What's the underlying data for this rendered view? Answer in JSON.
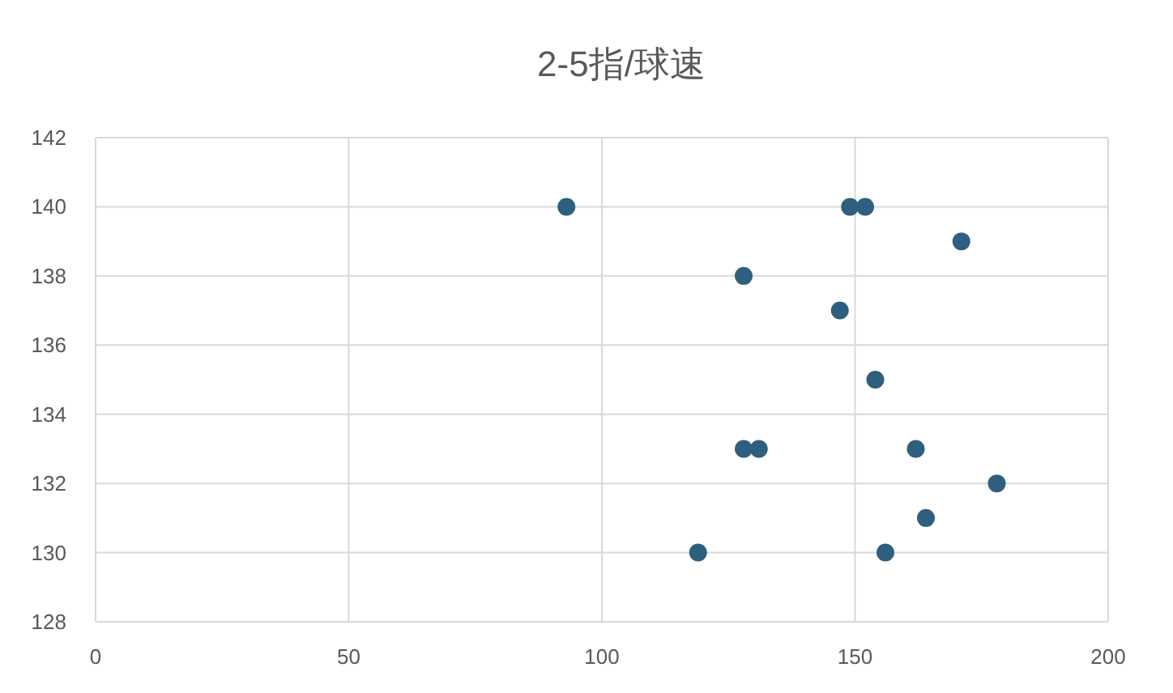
{
  "chart_data": {
    "type": "scatter",
    "title": "2-5指/球速",
    "x": [
      93,
      149,
      152,
      171,
      128,
      147,
      154,
      128,
      131,
      162,
      178,
      164,
      119,
      156
    ],
    "series": [
      {
        "color": "#2e5f7f",
        "values": [
          140,
          140,
          140,
          139,
          138,
          137,
          135,
          133,
          133,
          133,
          132,
          131,
          130,
          130
        ]
      }
    ],
    "xlim": [
      0,
      200
    ],
    "xticks": [
      0,
      50,
      100,
      150,
      200
    ],
    "ylim": [
      128,
      142
    ],
    "yticks": [
      128,
      130,
      132,
      134,
      136,
      138,
      140,
      142
    ],
    "grid": true,
    "marker": "circle"
  }
}
